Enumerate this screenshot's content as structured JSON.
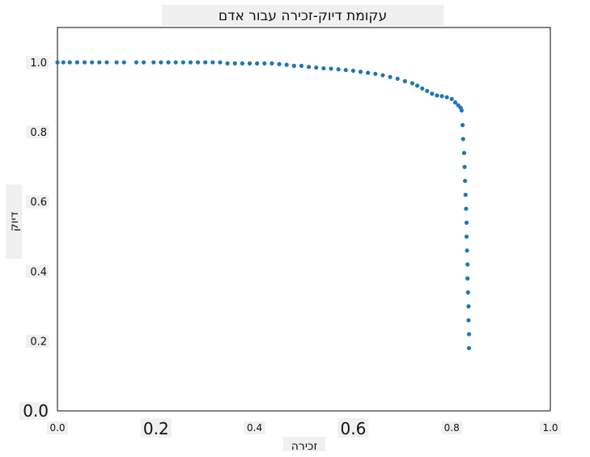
{
  "chart_data": {
    "type": "scatter",
    "title": "עקומת דיוק-זכירה עבור אדם",
    "xlabel": "זכירה",
    "ylabel": "דיוק",
    "xlim": [
      0.0,
      1.0
    ],
    "ylim": [
      0.0,
      1.1
    ],
    "xticks": [
      "0.0",
      "0.2",
      "0.4",
      "0.6",
      "0.8",
      "1.0"
    ],
    "yticks": [
      "0.0",
      "0.2",
      "0.4",
      "0.6",
      "0.8",
      "1.0"
    ],
    "grid": false,
    "series": [
      {
        "color": "#1f77b4",
        "points": [
          [
            0.0,
            1.0
          ],
          [
            0.012,
            1.0
          ],
          [
            0.025,
            1.0
          ],
          [
            0.04,
            1.0
          ],
          [
            0.055,
            1.0
          ],
          [
            0.07,
            1.0
          ],
          [
            0.085,
            1.0
          ],
          [
            0.1,
            1.0
          ],
          [
            0.12,
            1.0
          ],
          [
            0.135,
            1.0
          ],
          [
            0.16,
            1.0
          ],
          [
            0.175,
            1.0
          ],
          [
            0.195,
            1.0
          ],
          [
            0.21,
            1.0
          ],
          [
            0.225,
            1.0
          ],
          [
            0.24,
            1.0
          ],
          [
            0.255,
            1.0
          ],
          [
            0.27,
            1.0
          ],
          [
            0.285,
            1.0
          ],
          [
            0.3,
            1.0
          ],
          [
            0.315,
            1.0
          ],
          [
            0.33,
            1.0
          ],
          [
            0.345,
            0.997
          ],
          [
            0.36,
            0.997
          ],
          [
            0.375,
            0.997
          ],
          [
            0.39,
            0.997
          ],
          [
            0.405,
            0.997
          ],
          [
            0.42,
            0.997
          ],
          [
            0.435,
            0.997
          ],
          [
            0.45,
            0.995
          ],
          [
            0.465,
            0.993
          ],
          [
            0.48,
            0.99
          ],
          [
            0.495,
            0.99
          ],
          [
            0.51,
            0.987
          ],
          [
            0.525,
            0.985
          ],
          [
            0.54,
            0.983
          ],
          [
            0.555,
            0.982
          ],
          [
            0.57,
            0.98
          ],
          [
            0.585,
            0.978
          ],
          [
            0.6,
            0.976
          ],
          [
            0.615,
            0.973
          ],
          [
            0.63,
            0.97
          ],
          [
            0.645,
            0.967
          ],
          [
            0.66,
            0.963
          ],
          [
            0.675,
            0.958
          ],
          [
            0.69,
            0.953
          ],
          [
            0.705,
            0.946
          ],
          [
            0.72,
            0.94
          ],
          [
            0.73,
            0.933
          ],
          [
            0.74,
            0.925
          ],
          [
            0.75,
            0.918
          ],
          [
            0.76,
            0.91
          ],
          [
            0.77,
            0.905
          ],
          [
            0.78,
            0.903
          ],
          [
            0.79,
            0.9
          ],
          [
            0.8,
            0.895
          ],
          [
            0.807,
            0.885
          ],
          [
            0.813,
            0.877
          ],
          [
            0.818,
            0.87
          ],
          [
            0.82,
            0.862
          ],
          [
            0.822,
            0.82
          ],
          [
            0.823,
            0.78
          ],
          [
            0.825,
            0.74
          ],
          [
            0.826,
            0.7
          ],
          [
            0.827,
            0.66
          ],
          [
            0.828,
            0.62
          ],
          [
            0.829,
            0.58
          ],
          [
            0.83,
            0.54
          ],
          [
            0.83,
            0.5
          ],
          [
            0.831,
            0.46
          ],
          [
            0.832,
            0.42
          ],
          [
            0.832,
            0.38
          ],
          [
            0.833,
            0.34
          ],
          [
            0.834,
            0.3
          ],
          [
            0.834,
            0.26
          ],
          [
            0.835,
            0.22
          ],
          [
            0.835,
            0.18
          ]
        ]
      }
    ]
  }
}
